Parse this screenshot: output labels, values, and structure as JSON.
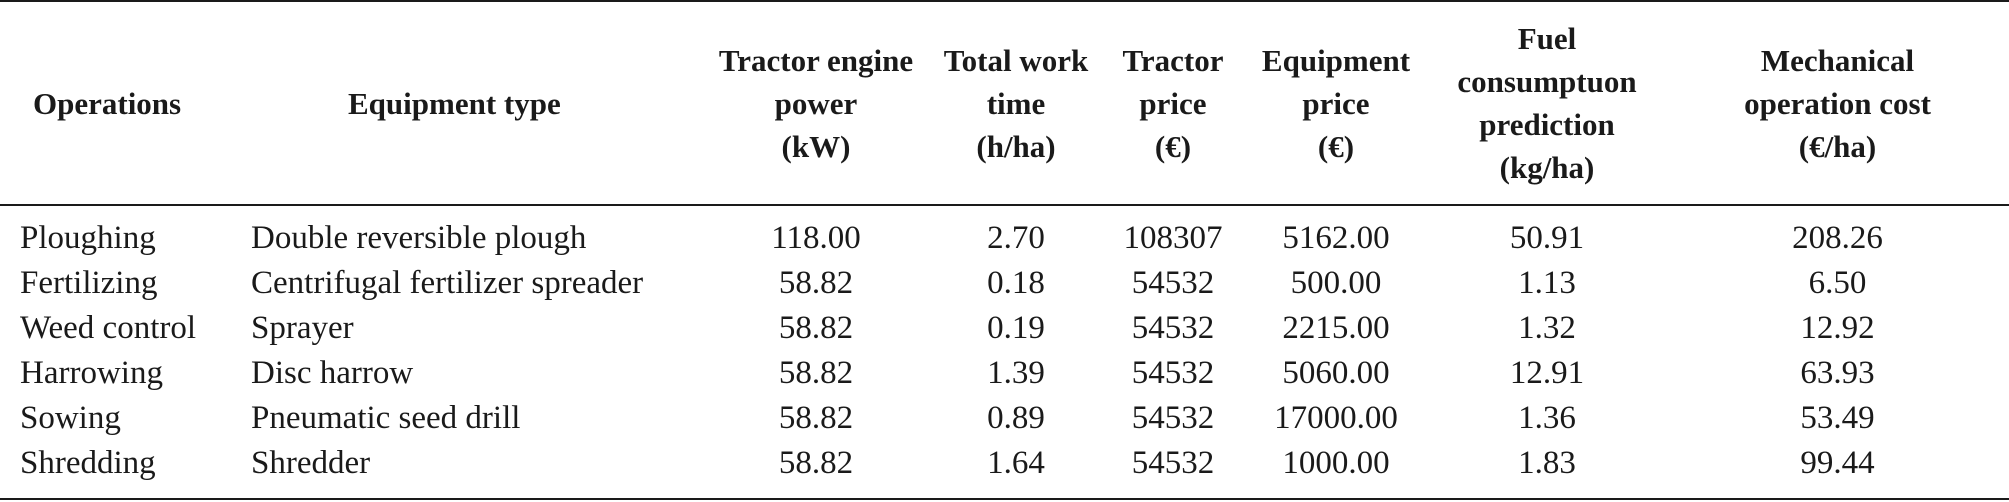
{
  "table": {
    "headers": [
      [
        "Operations"
      ],
      [
        "Equipment type"
      ],
      [
        "Tractor engine",
        "power",
        "(kW)"
      ],
      [
        "Total work",
        "time",
        "(h/ha)"
      ],
      [
        "Tractor",
        "price",
        "(€)"
      ],
      [
        "Equipment",
        "price",
        "(€)"
      ],
      [
        "Fuel",
        "consumptuon",
        "prediction",
        "(kg/ha)"
      ],
      [
        "Mechanical",
        "operation cost",
        "(€/ha)"
      ]
    ],
    "rows": [
      [
        "Ploughing",
        "Double reversible plough",
        "118.00",
        "2.70",
        "108307",
        "5162.00",
        "50.91",
        "208.26"
      ],
      [
        "Fertilizing",
        "Centrifugal fertilizer spreader",
        "58.82",
        "0.18",
        "54532",
        "500.00",
        "1.13",
        "6.50"
      ],
      [
        "Weed control",
        "Sprayer",
        "58.82",
        "0.19",
        "54532",
        "2215.00",
        "1.32",
        "12.92"
      ],
      [
        "Harrowing",
        "Disc harrow",
        "58.82",
        "1.39",
        "54532",
        "5060.00",
        "12.91",
        "63.93"
      ],
      [
        "Sowing",
        "Pneumatic seed drill",
        "58.82",
        "0.89",
        "54532",
        "17000.00",
        "1.36",
        "53.49"
      ],
      [
        "Shredding",
        "Shredder",
        "58.82",
        "1.64",
        "54532",
        "1000.00",
        "1.83",
        "99.44"
      ]
    ]
  }
}
